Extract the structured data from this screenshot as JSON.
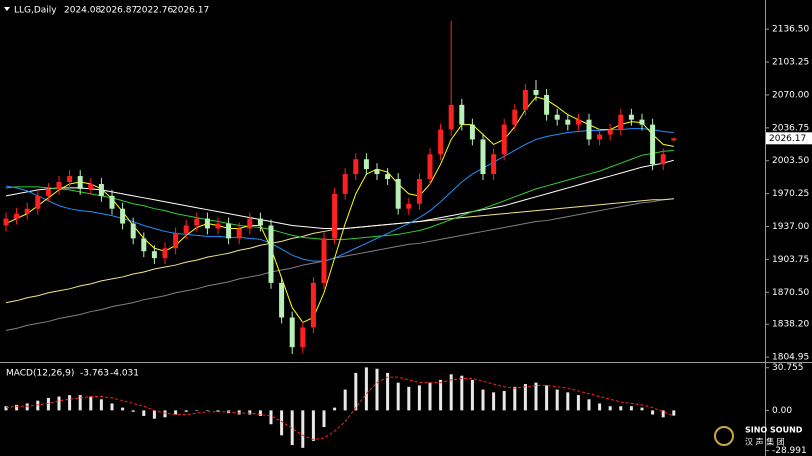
{
  "chart_data": [
    {
      "type": "candlestick",
      "title": "LLG,Daily",
      "up_color": "#ff2020",
      "down_color": "#b8f0b8",
      "open": [
        1938,
        1945,
        1950,
        1955,
        1968,
        1975,
        1982,
        1988,
        1975,
        1980,
        1968,
        1955,
        1940,
        1925,
        1912,
        1905,
        1915,
        1930,
        1938,
        1945,
        1935,
        1940,
        1925,
        1935,
        1945,
        1938,
        1880,
        1845,
        1815,
        1835,
        1880,
        1925,
        1970,
        1990,
        2005,
        1995,
        1990,
        1985,
        1955,
        1960,
        1985,
        2010,
        2035,
        2060,
        2040,
        2025,
        1990,
        2010,
        2040,
        2055,
        2075,
        2070,
        2050,
        2045,
        2040,
        2045,
        2025,
        2030,
        2035,
        2050,
        2045,
        2040,
        2000,
        2024.08
      ],
      "high": [
        1951,
        1956,
        1961,
        1974,
        1981,
        1988,
        1994,
        1994,
        1986,
        1986,
        1974,
        1961,
        1946,
        1931,
        1918,
        1921,
        1936,
        1944,
        1951,
        1951,
        1946,
        1946,
        1941,
        1951,
        1951,
        1944,
        1886,
        1851,
        1841,
        1886,
        1931,
        1976,
        1996,
        2011,
        2011,
        2001,
        1996,
        1991,
        1966,
        1991,
        2016,
        2041,
        2145,
        2066,
        2046,
        2031,
        2016,
        2046,
        2061,
        2081,
        2085,
        2076,
        2056,
        2051,
        2051,
        2051,
        2036,
        2041,
        2056,
        2056,
        2051,
        2046,
        2016,
        2026.87
      ],
      "low": [
        1932,
        1939,
        1944,
        1949,
        1962,
        1969,
        1976,
        1969,
        1969,
        1962,
        1949,
        1934,
        1919,
        1906,
        1899,
        1899,
        1909,
        1924,
        1932,
        1929,
        1929,
        1919,
        1919,
        1929,
        1932,
        1874,
        1839,
        1808,
        1809,
        1829,
        1874,
        1919,
        1964,
        1984,
        1989,
        1984,
        1979,
        1949,
        1949,
        1954,
        1979,
        2004,
        2029,
        2034,
        2019,
        1984,
        1984,
        2004,
        2034,
        2049,
        2064,
        2044,
        2039,
        2034,
        2034,
        2019,
        2019,
        2024,
        2029,
        2039,
        2034,
        1994,
        1994,
        2022.76
      ],
      "close": [
        1945,
        1950,
        1955,
        1968,
        1975,
        1982,
        1988,
        1975,
        1980,
        1968,
        1955,
        1940,
        1925,
        1912,
        1905,
        1915,
        1930,
        1938,
        1945,
        1935,
        1940,
        1925,
        1935,
        1945,
        1938,
        1880,
        1845,
        1815,
        1835,
        1880,
        1925,
        1970,
        1990,
        2005,
        1995,
        1990,
        1985,
        1955,
        1960,
        1985,
        2010,
        2035,
        2060,
        2040,
        2025,
        1990,
        2010,
        2040,
        2055,
        2075,
        2070,
        2050,
        2045,
        2040,
        2045,
        2025,
        2030,
        2035,
        2050,
        2045,
        2040,
        2000,
        2010,
        2026.17
      ],
      "moving_averages": [
        {
          "color": "#808080",
          "values": [
            1832,
            1834,
            1837,
            1839,
            1841,
            1844,
            1846,
            1848,
            1851,
            1853,
            1856,
            1858,
            1860,
            1863,
            1865,
            1867,
            1870,
            1872,
            1874,
            1877,
            1879,
            1881,
            1884,
            1886,
            1888,
            1891,
            1893,
            1895,
            1898,
            1900,
            1902,
            1905,
            1907,
            1909,
            1911,
            1913,
            1915,
            1917,
            1919,
            1920,
            1922,
            1924,
            1926,
            1928,
            1930,
            1932,
            1934,
            1936,
            1938,
            1940,
            1942,
            1943,
            1945,
            1947,
            1949,
            1951,
            1953,
            1955,
            1957,
            1959,
            1961,
            1962,
            1964,
            1965
          ]
        },
        {
          "color": "#f0e68c",
          "values": [
            1860,
            1862,
            1865,
            1867,
            1870,
            1872,
            1874,
            1877,
            1879,
            1882,
            1884,
            1886,
            1889,
            1891,
            1894,
            1896,
            1898,
            1901,
            1903,
            1906,
            1908,
            1910,
            1913,
            1915,
            1918,
            1920,
            1922,
            1925,
            1927,
            1930,
            1932,
            1934,
            1935,
            1936,
            1937,
            1938,
            1939,
            1940,
            1941,
            1942,
            1943,
            1944,
            1945,
            1946,
            1947,
            1948,
            1949,
            1950,
            1951,
            1952,
            1953,
            1954,
            1955,
            1956,
            1957,
            1958,
            1959,
            1960,
            1961,
            1962,
            1963,
            1964,
            1964,
            1965
          ]
        },
        {
          "color": "#ffffff",
          "values": [
            1968,
            1970,
            1972,
            1974,
            1975,
            1976,
            1976,
            1976,
            1975,
            1974,
            1972,
            1970,
            1968,
            1966,
            1964,
            1962,
            1960,
            1958,
            1956,
            1954,
            1952,
            1950,
            1948,
            1946,
            1944,
            1942,
            1940,
            1938,
            1937,
            1936,
            1935,
            1935,
            1935,
            1936,
            1937,
            1938,
            1939,
            1940,
            1941,
            1942,
            1944,
            1946,
            1948,
            1950,
            1952,
            1954,
            1956,
            1958,
            1961,
            1964,
            1967,
            1970,
            1973,
            1976,
            1979,
            1982,
            1985,
            1988,
            1991,
            1994,
            1997,
            1999,
            2001,
            2004
          ]
        },
        {
          "color": "#32cd32",
          "values": [
            1976,
            1977,
            1977,
            1977,
            1976,
            1975,
            1974,
            1972,
            1970,
            1968,
            1966,
            1963,
            1960,
            1958,
            1955,
            1953,
            1950,
            1948,
            1946,
            1944,
            1942,
            1940,
            1938,
            1937,
            1936,
            1934,
            1931,
            1928,
            1926,
            1925,
            1924,
            1924,
            1924,
            1925,
            1926,
            1927,
            1928,
            1929,
            1931,
            1933,
            1936,
            1940,
            1944,
            1948,
            1952,
            1955,
            1959,
            1963,
            1967,
            1971,
            1975,
            1978,
            1981,
            1984,
            1987,
            1990,
            1993,
            1997,
            2001,
            2005,
            2009,
            2011,
            2013,
            2014
          ]
        },
        {
          "color": "#1e90ff",
          "values": [
            1978,
            1976,
            1973,
            1968,
            1963,
            1958,
            1955,
            1953,
            1952,
            1950,
            1948,
            1945,
            1942,
            1938,
            1935,
            1932,
            1930,
            1929,
            1928,
            1927,
            1927,
            1926,
            1926,
            1925,
            1924,
            1920,
            1914,
            1908,
            1904,
            1902,
            1902,
            1905,
            1910,
            1915,
            1920,
            1925,
            1930,
            1935,
            1940,
            1946,
            1953,
            1962,
            1972,
            1982,
            1990,
            1996,
            2002,
            2008,
            2014,
            2020,
            2025,
            2028,
            2030,
            2032,
            2033,
            2034,
            2034,
            2035,
            2035,
            2036,
            2036,
            2035,
            2033,
            2032
          ]
        },
        {
          "color": "#ffff00",
          "values": [
            1940,
            1945,
            1950,
            1958,
            1966,
            1974,
            1980,
            1982,
            1980,
            1975,
            1965,
            1952,
            1938,
            1925,
            1915,
            1912,
            1918,
            1928,
            1936,
            1940,
            1938,
            1935,
            1935,
            1938,
            1938,
            1915,
            1885,
            1855,
            1840,
            1845,
            1870,
            1905,
            1940,
            1970,
            1990,
            1995,
            1992,
            1980,
            1970,
            1968,
            1980,
            2000,
            2025,
            2040,
            2040,
            2030,
            2020,
            2025,
            2038,
            2055,
            2068,
            2065,
            2058,
            2050,
            2045,
            2040,
            2035,
            2035,
            2040,
            2043,
            2042,
            2030,
            2020,
            2018
          ]
        }
      ],
      "ylim": [
        1800,
        2166
      ],
      "yticks": [
        {
          "value": 2136.5,
          "label": "2136.50"
        },
        {
          "value": 2103.25,
          "label": "2103.25"
        },
        {
          "value": 2070,
          "label": "2070.00"
        },
        {
          "value": 2036.75,
          "label": "2036.75"
        },
        {
          "value": 2003.5,
          "label": "2003.50"
        },
        {
          "value": 1970.25,
          "label": "1970.25"
        },
        {
          "value": 1937,
          "label": "1937.00"
        },
        {
          "value": 1903.75,
          "label": "1903.75"
        },
        {
          "value": 1870.5,
          "label": "1870.50"
        },
        {
          "value": 1838.2,
          "label": "1838.20"
        },
        {
          "value": 1804.95,
          "label": "1804.95"
        }
      ]
    },
    {
      "type": "macd",
      "title": "MACD(12,26,9)",
      "histogram": {
        "color": "#e8e8e8",
        "values": [
          3,
          4,
          5,
          7,
          9,
          10,
          11,
          11,
          10,
          8,
          5,
          2,
          -1,
          -4,
          -6,
          -5,
          -3,
          -1,
          0,
          0,
          -1,
          -2,
          -3,
          -3,
          -4,
          -10,
          -18,
          -25,
          -27,
          -22,
          -12,
          2,
          15,
          27,
          31,
          30,
          27,
          20,
          17,
          18,
          20,
          22,
          26,
          25,
          22,
          15,
          13,
          14,
          17,
          19,
          20,
          18,
          15,
          13,
          11,
          8,
          5,
          3,
          3,
          3,
          2,
          -3,
          -5,
          -3.763
        ]
      },
      "signal": {
        "color": "#ff2020",
        "values": [
          2,
          3,
          3,
          4,
          5,
          7,
          8,
          9,
          10,
          10,
          9,
          7,
          5,
          3,
          0,
          -2,
          -3,
          -3,
          -2,
          -1,
          -1,
          -1,
          -2,
          -2,
          -3,
          -4,
          -8,
          -13,
          -18,
          -21,
          -20,
          -15,
          -8,
          2,
          12,
          20,
          24,
          24,
          22,
          20,
          20,
          20,
          22,
          23,
          23,
          21,
          19,
          17,
          16,
          17,
          18,
          18,
          17,
          16,
          14,
          12,
          10,
          8,
          6,
          5,
          4,
          2,
          -1,
          -4.031
        ]
      },
      "ylim": [
        -30,
        32
      ],
      "yticks": [
        30.755,
        {
          "value": 0,
          "label": "0.00"
        },
        -28.991
      ]
    }
  ],
  "logo": {
    "name": "SINO SOUND",
    "subtitle": "汉 声 集 团"
  }
}
